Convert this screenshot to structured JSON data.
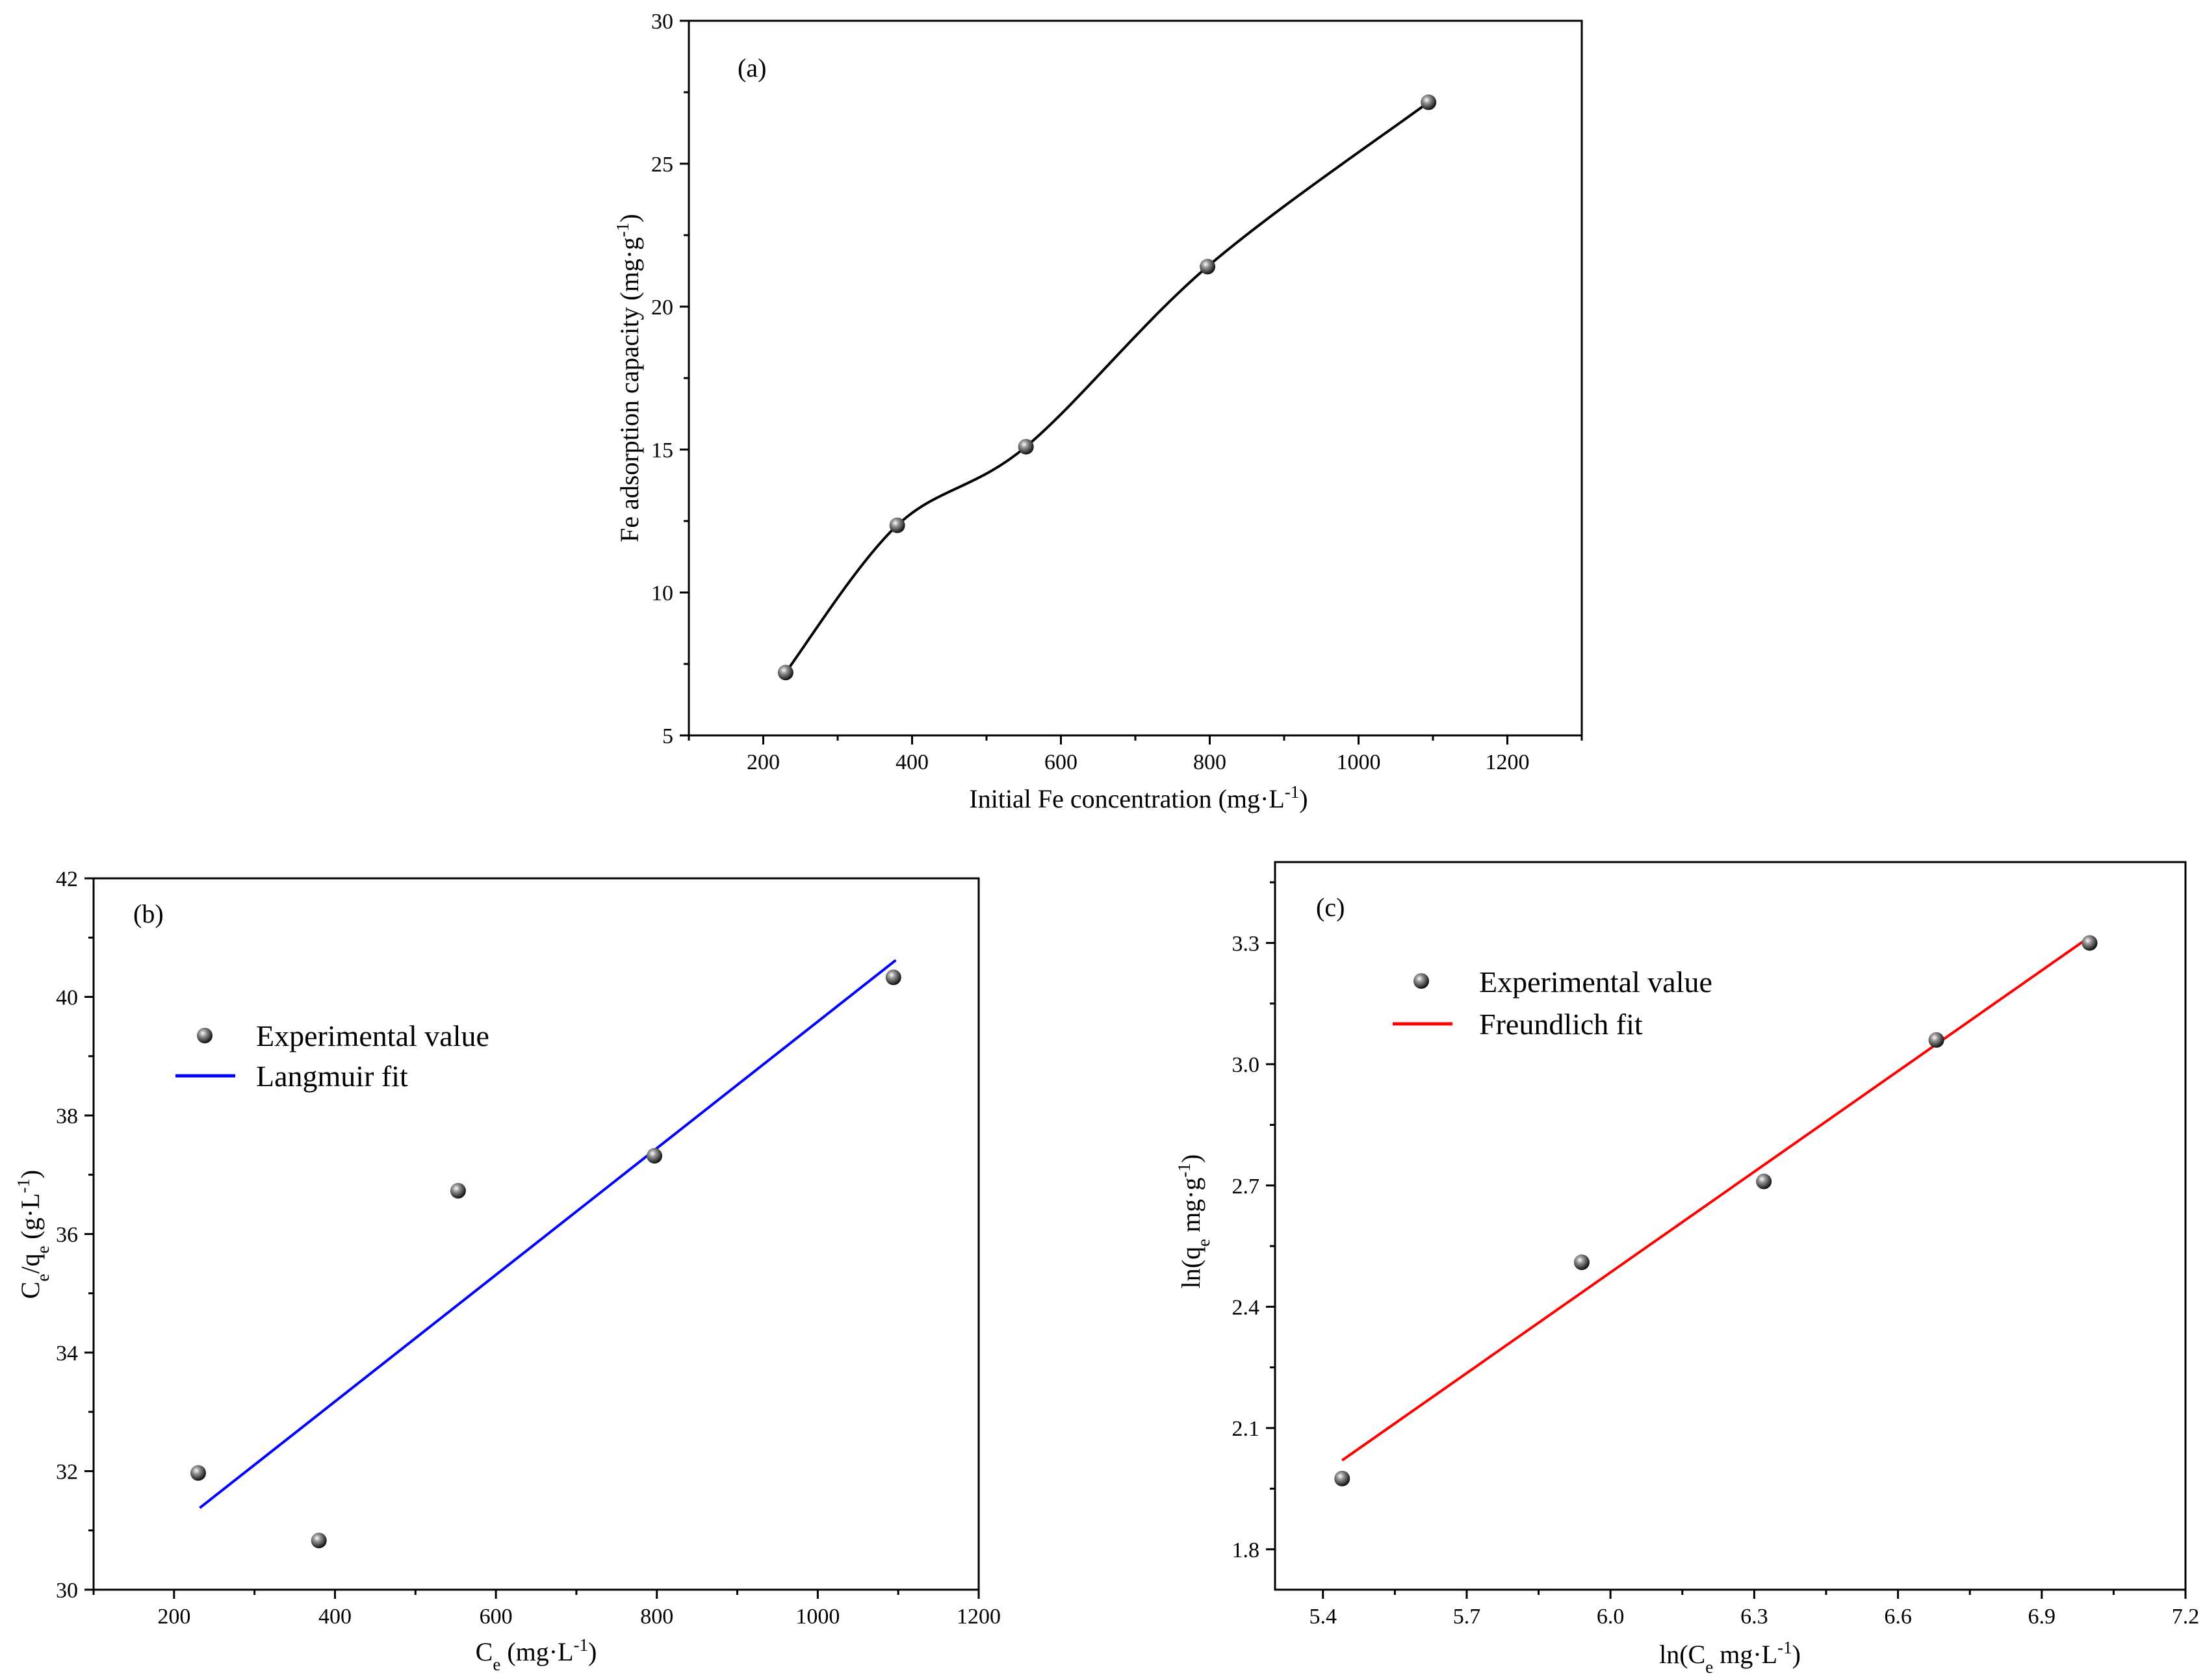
{
  "colors": {
    "curve": "#000000",
    "langmuir": "#0000ff",
    "freundlich": "#ff0000"
  },
  "chart_data": [
    {
      "panel": "(a)",
      "type": "line",
      "curve": "smooth",
      "xlabel": "Initial Fe concentration (mg·L",
      "xlabel_sup": "-1",
      "xlabel_end": ")",
      "ylabel": "Fe adsorption capacity (mg·g",
      "ylabel_sup": "-1",
      "ylabel_end": ")",
      "xlim": [
        100,
        1300
      ],
      "ylim": [
        5,
        30
      ],
      "xticks": [
        200,
        400,
        600,
        800,
        1000,
        1200
      ],
      "yticks": [
        5,
        10,
        15,
        20,
        25,
        30
      ],
      "series": [
        {
          "name": "Fe adsorption capacity",
          "x": [
            230,
            380,
            553,
            797,
            1094
          ],
          "y": [
            7.2,
            12.35,
            15.1,
            21.4,
            27.15
          ]
        }
      ]
    },
    {
      "panel": "(b)",
      "type": "scatter",
      "xlabel_main": "C",
      "xlabel_sub": "e",
      "xlabel_rest": " (mg·L",
      "xlabel_sup": "-1",
      "xlabel_end": ")",
      "ylabel_c": "C",
      "ylabel_e1": "e",
      "ylabel_q": "/q",
      "ylabel_e2": "e",
      "ylabel_rest": " (g·L",
      "ylabel_sup": "-1",
      "ylabel_end": ")",
      "xlim": [
        100,
        1200
      ],
      "ylim": [
        30,
        42
      ],
      "xticks": [
        200,
        400,
        600,
        800,
        1000,
        1200
      ],
      "yticks": [
        30,
        32,
        34,
        36,
        38,
        40,
        42
      ],
      "legend": [
        "Experimental value",
        "Langmuir fit"
      ],
      "points": {
        "x": [
          230,
          380,
          553,
          797,
          1094
        ],
        "y": [
          31.97,
          30.83,
          36.73,
          37.32,
          40.33
        ]
      },
      "fit": {
        "x": [
          232,
          1097
        ],
        "y": [
          31.38,
          40.62
        ]
      }
    },
    {
      "panel": "(c)",
      "type": "scatter",
      "xlabel": "ln(C",
      "xlabel_sub": "e",
      "xlabel_rest": "  mg·L",
      "xlabel_sup": "-1",
      "xlabel_end": ")",
      "ylabel": "ln(q",
      "ylabel_sub": "e",
      "ylabel_rest": "  mg·g",
      "ylabel_sup": "-1",
      "ylabel_end": ")",
      "xlim": [
        5.3,
        7.2
      ],
      "ylim": [
        1.7,
        3.5
      ],
      "xticks": [
        5.4,
        5.7,
        6.0,
        6.3,
        6.6,
        6.9,
        7.2
      ],
      "xtick_labels": [
        "5.4",
        "5.7",
        "6.0",
        "6.3",
        "6.6",
        "6.9",
        "7.2"
      ],
      "yticks": [
        1.8,
        2.1,
        2.4,
        2.7,
        3.0,
        3.3
      ],
      "ytick_labels": [
        "1.8",
        "2.1",
        "2.4",
        "2.7",
        "3.0",
        "3.3"
      ],
      "legend": [
        "Experimental value",
        "Freundlich fit"
      ],
      "points": {
        "x": [
          5.44,
          5.94,
          6.32,
          6.68,
          7.0
        ],
        "y": [
          1.975,
          2.51,
          2.71,
          3.06,
          3.3
        ]
      },
      "fit": {
        "x": [
          5.44,
          7.0
        ],
        "y": [
          2.02,
          3.315
        ]
      }
    }
  ]
}
